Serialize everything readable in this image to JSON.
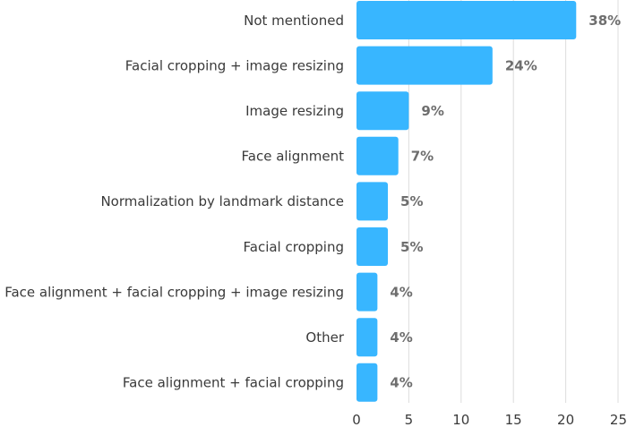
{
  "chart_data": {
    "type": "bar",
    "orientation": "horizontal",
    "categories": [
      "Not mentioned",
      "Facial cropping + image resizing",
      "Image resizing",
      "Face alignment",
      "Normalization by landmark distance",
      "Facial cropping",
      "Face alignment + facial cropping + image resizing",
      "Other",
      "Face alignment + facial cropping"
    ],
    "values": [
      21,
      13,
      5,
      4,
      3,
      3,
      2,
      2,
      2
    ],
    "data_labels": [
      "38%",
      "24%",
      "9%",
      "7%",
      "5%",
      "5%",
      "4%",
      "4%",
      "4%"
    ],
    "xticks": [
      0,
      5,
      10,
      15,
      20,
      25
    ],
    "xlim": [
      0,
      25
    ],
    "grid": true,
    "bar_color": "#38b6ff"
  }
}
